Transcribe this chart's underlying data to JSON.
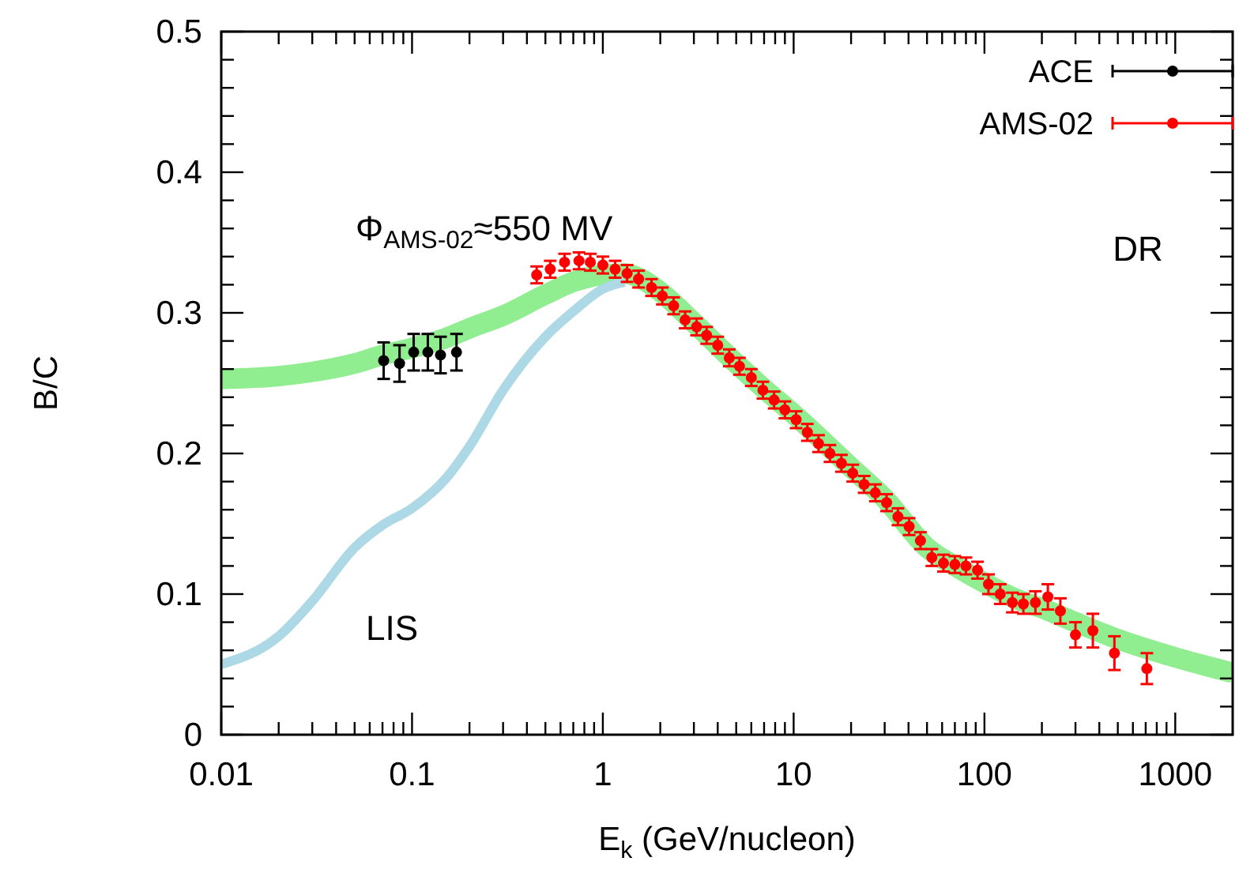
{
  "chart_data": {
    "type": "scatter",
    "xlabel": "E$_{k}$ (GeV/nucleon)",
    "ylabel": "B/C",
    "log": "x",
    "xlim": [
      0.01,
      2000
    ],
    "ylim": [
      0,
      0.5
    ],
    "xticks": [
      0.01,
      {
        "value": 0.02,
        "label": null
      },
      {
        "value": 0.03,
        "label": null
      },
      {
        "value": 0.04,
        "label": null
      },
      {
        "value": 0.05,
        "label": null
      },
      {
        "value": 0.06,
        "label": null
      },
      {
        "value": 0.07,
        "label": null
      },
      {
        "value": 0.08,
        "label": null
      },
      {
        "value": 0.09,
        "label": null
      },
      0.1,
      {
        "value": 0.2,
        "label": null
      },
      {
        "value": 0.3,
        "label": null
      },
      {
        "value": 0.4,
        "label": null
      },
      {
        "value": 0.5,
        "label": null
      },
      {
        "value": 0.6,
        "label": null
      },
      {
        "value": 0.7,
        "label": null
      },
      {
        "value": 0.8,
        "label": null
      },
      {
        "value": 0.9,
        "label": null
      },
      1,
      {
        "value": 2,
        "label": null
      },
      {
        "value": 3,
        "label": null
      },
      {
        "value": 4,
        "label": null
      },
      {
        "value": 5,
        "label": null
      },
      {
        "value": 6,
        "label": null
      },
      {
        "value": 7,
        "label": null
      },
      {
        "value": 8,
        "label": null
      },
      {
        "value": 9,
        "label": null
      },
      10,
      {
        "value": 20,
        "label": null
      },
      {
        "value": 30,
        "label": null
      },
      {
        "value": 40,
        "label": null
      },
      {
        "value": 50,
        "label": null
      },
      {
        "value": 60,
        "label": null
      },
      {
        "value": 70,
        "label": null
      },
      {
        "value": 80,
        "label": null
      },
      {
        "value": 90,
        "label": null
      },
      100,
      {
        "value": 200,
        "label": null
      },
      {
        "value": 300,
        "label": null
      },
      {
        "value": 400,
        "label": null
      },
      {
        "value": 500,
        "label": null
      },
      {
        "value": 600,
        "label": null
      },
      {
        "value": 700,
        "label": null
      },
      {
        "value": 800,
        "label": null
      },
      {
        "value": 900,
        "label": null
      },
      1000
    ],
    "yticks": [
      0,
      {
        "value": 0.02,
        "label": null
      },
      {
        "value": 0.04,
        "label": null
      },
      {
        "value": 0.06,
        "label": null
      },
      {
        "value": 0.08,
        "label": null
      },
      0.1,
      {
        "value": 0.12,
        "label": null
      },
      {
        "value": 0.14,
        "label": null
      },
      {
        "value": 0.16,
        "label": null
      },
      {
        "value": 0.18,
        "label": null
      },
      0.2,
      {
        "value": 0.22,
        "label": null
      },
      {
        "value": 0.24,
        "label": null
      },
      {
        "value": 0.26,
        "label": null
      },
      {
        "value": 0.28,
        "label": null
      },
      0.3,
      {
        "value": 0.32,
        "label": null
      },
      {
        "value": 0.34,
        "label": null
      },
      {
        "value": 0.36,
        "label": null
      },
      {
        "value": 0.38,
        "label": null
      },
      0.4,
      {
        "value": 0.42,
        "label": null
      },
      {
        "value": 0.44,
        "label": null
      },
      {
        "value": 0.46,
        "label": null
      },
      {
        "value": 0.48,
        "label": null
      },
      0.5
    ],
    "grid": false,
    "legend": "top right",
    "annotations": [
      "Φ$_{AMS-02}$≈550 MV",
      "DR",
      "LIS"
    ],
    "series": [
      {
        "type": "line",
        "marker": "none",
        "color": "#90ee90",
        "x": [
          0.01,
          0.02,
          0.03,
          0.05,
          0.07,
          0.1,
          0.15,
          0.2,
          0.3,
          0.5,
          0.7,
          1,
          1.3,
          1.6,
          2,
          3,
          5,
          7,
          10,
          20,
          30,
          50,
          70,
          100,
          150,
          200,
          300,
          500,
          1000,
          2000
        ],
        "values": [
          0.253,
          0.255,
          0.258,
          0.264,
          0.27,
          0.275,
          0.282,
          0.289,
          0.298,
          0.313,
          0.322,
          0.327,
          0.328,
          0.324,
          0.315,
          0.293,
          0.264,
          0.246,
          0.228,
          0.19,
          0.168,
          0.133,
          0.12,
          0.108,
          0.096,
          0.09,
          0.08,
          0.068,
          0.055,
          0.044
        ]
      },
      {
        "type": "line",
        "marker": "none",
        "color": "#add8e6",
        "x": [
          0.01,
          0.02,
          0.03,
          0.05,
          0.07,
          0.1,
          0.15,
          0.2,
          0.3,
          0.5,
          0.7,
          1,
          1.3
        ],
        "values": [
          0.05,
          0.07,
          0.095,
          0.133,
          0.149,
          0.161,
          0.182,
          0.205,
          0.245,
          0.283,
          0.301,
          0.317,
          0.322
        ]
      },
      {
        "marker": "circle",
        "name": "ACE",
        "color": "#000000",
        "x": [
          0.071,
          0.086,
          0.102,
          0.121,
          0.141,
          0.171
        ],
        "values": [
          0.266,
          0.264,
          0.272,
          0.272,
          0.27,
          0.272
        ],
        "errors": [
          0.013,
          0.013,
          0.013,
          0.013,
          0.013,
          0.013
        ]
      },
      {
        "marker": "circle",
        "name": "AMS-02",
        "color": "#ff0000",
        "x": [
          0.45,
          0.53,
          0.63,
          0.75,
          0.86,
          1.0,
          1.16,
          1.34,
          1.54,
          1.8,
          2.05,
          2.35,
          2.7,
          3.1,
          3.5,
          4.0,
          4.6,
          5.2,
          6.0,
          6.9,
          7.9,
          9.0,
          10.3,
          11.8,
          13.5,
          15.5,
          17.8,
          20.4,
          23.4,
          26.8,
          30.7,
          35.2,
          40.3,
          46.2,
          53,
          61,
          70,
          80,
          92,
          105,
          121,
          140,
          160,
          185,
          215,
          250,
          300,
          370,
          480,
          710
        ],
        "values": [
          0.327,
          0.331,
          0.336,
          0.337,
          0.336,
          0.334,
          0.331,
          0.328,
          0.324,
          0.318,
          0.312,
          0.305,
          0.295,
          0.29,
          0.284,
          0.277,
          0.268,
          0.262,
          0.254,
          0.245,
          0.238,
          0.231,
          0.224,
          0.215,
          0.207,
          0.2,
          0.193,
          0.186,
          0.178,
          0.172,
          0.165,
          0.155,
          0.148,
          0.138,
          0.126,
          0.122,
          0.121,
          0.12,
          0.117,
          0.107,
          0.1,
          0.094,
          0.093,
          0.094,
          0.098,
          0.088,
          0.071,
          0.074,
          0.058,
          0.047
        ],
        "errors": [
          0.006,
          0.006,
          0.006,
          0.006,
          0.006,
          0.006,
          0.006,
          0.006,
          0.006,
          0.006,
          0.006,
          0.006,
          0.006,
          0.006,
          0.006,
          0.006,
          0.006,
          0.006,
          0.006,
          0.006,
          0.006,
          0.006,
          0.006,
          0.006,
          0.006,
          0.006,
          0.006,
          0.006,
          0.006,
          0.006,
          0.006,
          0.006,
          0.006,
          0.006,
          0.006,
          0.006,
          0.006,
          0.006,
          0.006,
          0.007,
          0.007,
          0.007,
          0.007,
          0.008,
          0.009,
          0.009,
          0.009,
          0.012,
          0.012,
          0.011
        ]
      }
    ]
  }
}
